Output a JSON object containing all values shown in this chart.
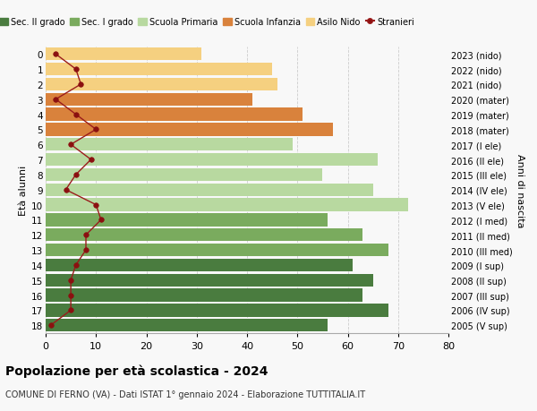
{
  "ages": [
    18,
    17,
    16,
    15,
    14,
    13,
    12,
    11,
    10,
    9,
    8,
    7,
    6,
    5,
    4,
    3,
    2,
    1,
    0
  ],
  "bar_values": [
    56,
    68,
    63,
    65,
    61,
    68,
    63,
    56,
    72,
    65,
    55,
    66,
    49,
    57,
    51,
    41,
    46,
    45,
    31
  ],
  "stranieri_values": [
    1,
    5,
    5,
    5,
    6,
    8,
    8,
    11,
    10,
    4,
    6,
    9,
    5,
    10,
    6,
    2,
    7,
    6,
    2
  ],
  "right_labels": [
    "2005 (V sup)",
    "2006 (IV sup)",
    "2007 (III sup)",
    "2008 (II sup)",
    "2009 (I sup)",
    "2010 (III med)",
    "2011 (II med)",
    "2012 (I med)",
    "2013 (V ele)",
    "2014 (IV ele)",
    "2015 (III ele)",
    "2016 (II ele)",
    "2017 (I ele)",
    "2018 (mater)",
    "2019 (mater)",
    "2020 (mater)",
    "2021 (nido)",
    "2022 (nido)",
    "2023 (nido)"
  ],
  "bar_colors": [
    "#4a7c3f",
    "#4a7c3f",
    "#4a7c3f",
    "#4a7c3f",
    "#4a7c3f",
    "#7aab5e",
    "#7aab5e",
    "#7aab5e",
    "#b8d9a0",
    "#b8d9a0",
    "#b8d9a0",
    "#b8d9a0",
    "#b8d9a0",
    "#d9823c",
    "#d9823c",
    "#d9823c",
    "#f5d080",
    "#f5d080",
    "#f5d080"
  ],
  "legend_labels": [
    "Sec. II grado",
    "Sec. I grado",
    "Scuola Primaria",
    "Scuola Infanzia",
    "Asilo Nido",
    "Stranieri"
  ],
  "legend_colors": [
    "#4a7c3f",
    "#7aab5e",
    "#b8d9a0",
    "#d9823c",
    "#f5d080",
    "#a02020"
  ],
  "ylabel": "Età alunni",
  "right_ylabel": "Anni di nascita",
  "title": "Popolazione per età scolastica - 2024",
  "subtitle": "COMUNE DI FERNO (VA) - Dati ISTAT 1° gennaio 2024 - Elaborazione TUTTITALIA.IT",
  "xlim": [
    0,
    80
  ],
  "xticks": [
    0,
    10,
    20,
    30,
    40,
    50,
    60,
    70,
    80
  ],
  "bg_color": "#f8f8f8",
  "grid_color": "#cccccc",
  "stranieri_line_color": "#9b1c1c",
  "stranieri_marker_color": "#8b1010"
}
